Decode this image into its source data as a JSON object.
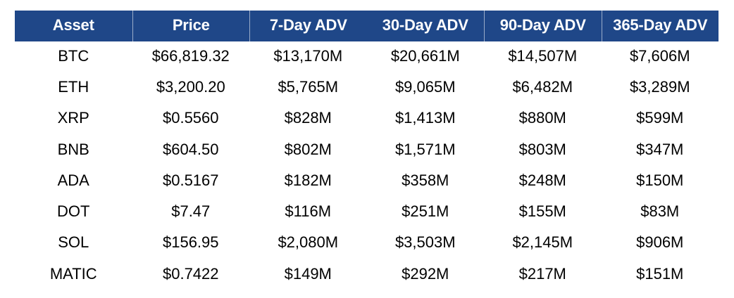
{
  "colors": {
    "header_background": "#1f4788",
    "header_text": "#ffffff",
    "body_text": "#000000",
    "page_background": "#ffffff",
    "header_separator": "rgba(255,255,255,0.55)"
  },
  "table": {
    "columns": [
      "Asset",
      "Price",
      "7-Day ADV",
      "30-Day ADV",
      "90-Day ADV",
      "365-Day ADV"
    ],
    "header_separator_after_columns": [
      0,
      1,
      3,
      4
    ],
    "rows": [
      [
        "BTC",
        "$66,819.32",
        "$13,170M",
        "$20,661M",
        "$14,507M",
        "$7,606M"
      ],
      [
        "ETH",
        "$3,200.20",
        "$5,765M",
        "$9,065M",
        "$6,482M",
        "$3,289M"
      ],
      [
        "XRP",
        "$0.5560",
        "$828M",
        "$1,413M",
        "$880M",
        "$599M"
      ],
      [
        "BNB",
        "$604.50",
        "$802M",
        "$1,571M",
        "$803M",
        "$347M"
      ],
      [
        "ADA",
        "$0.5167",
        "$182M",
        "$358M",
        "$248M",
        "$150M"
      ],
      [
        "DOT",
        "$7.47",
        "$116M",
        "$251M",
        "$155M",
        "$83M"
      ],
      [
        "SOL",
        "$156.95",
        "$2,080M",
        "$3,503M",
        "$2,145M",
        "$906M"
      ],
      [
        "MATIC",
        "$0.7422",
        "$149M",
        "$292M",
        "$217M",
        "$151M"
      ]
    ]
  },
  "chart_data": {
    "type": "table",
    "title": "",
    "columns": [
      "Asset",
      "Price",
      "7-Day ADV",
      "30-Day ADV",
      "90-Day ADV",
      "365-Day ADV"
    ],
    "rows": [
      {
        "asset": "BTC",
        "price": "$66,819.32",
        "adv_7d": "$13,170M",
        "adv_30d": "$20,661M",
        "adv_90d": "$14,507M",
        "adv_365d": "$7,606M"
      },
      {
        "asset": "ETH",
        "price": "$3,200.20",
        "adv_7d": "$5,765M",
        "adv_30d": "$9,065M",
        "adv_90d": "$6,482M",
        "adv_365d": "$3,289M"
      },
      {
        "asset": "XRP",
        "price": "$0.5560",
        "adv_7d": "$828M",
        "adv_30d": "$1,413M",
        "adv_90d": "$880M",
        "adv_365d": "$599M"
      },
      {
        "asset": "BNB",
        "price": "$604.50",
        "adv_7d": "$802M",
        "adv_30d": "$1,571M",
        "adv_90d": "$803M",
        "adv_365d": "$347M"
      },
      {
        "asset": "ADA",
        "price": "$0.5167",
        "adv_7d": "$182M",
        "adv_30d": "$358M",
        "adv_90d": "$248M",
        "adv_365d": "$150M"
      },
      {
        "asset": "DOT",
        "price": "$7.47",
        "adv_7d": "$116M",
        "adv_30d": "$251M",
        "adv_90d": "$155M",
        "adv_365d": "$83M"
      },
      {
        "asset": "SOL",
        "price": "$156.95",
        "adv_7d": "$2,080M",
        "adv_30d": "$3,503M",
        "adv_90d": "$2,145M",
        "adv_365d": "$906M"
      },
      {
        "asset": "MATIC",
        "price": "$0.7422",
        "adv_7d": "$149M",
        "adv_30d": "$292M",
        "adv_90d": "$217M",
        "adv_365d": "$151M"
      }
    ]
  }
}
